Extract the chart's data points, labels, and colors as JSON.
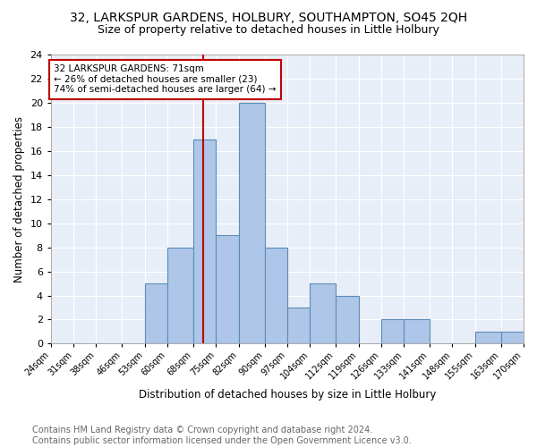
{
  "title1": "32, LARKSPUR GARDENS, HOLBURY, SOUTHAMPTON, SO45 2QH",
  "title2": "Size of property relative to detached houses in Little Holbury",
  "xlabel": "Distribution of detached houses by size in Little Holbury",
  "ylabel": "Number of detached properties",
  "footer": "Contains HM Land Registry data © Crown copyright and database right 2024.\nContains public sector information licensed under the Open Government Licence v3.0.",
  "bin_labels": [
    "24sqm",
    "31sqm",
    "38sqm",
    "46sqm",
    "53sqm",
    "60sqm",
    "68sqm",
    "75sqm",
    "82sqm",
    "90sqm",
    "97sqm",
    "104sqm",
    "112sqm",
    "119sqm",
    "126sqm",
    "133sqm",
    "141sqm",
    "148sqm",
    "155sqm",
    "163sqm",
    "170sqm"
  ],
  "bin_edges": [
    24,
    31,
    38,
    46,
    53,
    60,
    68,
    75,
    82,
    90,
    97,
    104,
    112,
    119,
    126,
    133,
    141,
    148,
    155,
    163,
    170
  ],
  "counts": [
    0,
    0,
    0,
    0,
    5,
    8,
    17,
    9,
    20,
    8,
    3,
    5,
    4,
    0,
    2,
    2,
    0,
    0,
    1,
    1,
    0
  ],
  "bar_color": "#aec6e8",
  "bar_edge_color": "#5b8db8",
  "vline_x": 71,
  "vline_color": "#c00000",
  "annotation_text": "32 LARKSPUR GARDENS: 71sqm\n← 26% of detached houses are smaller (23)\n74% of semi-detached houses are larger (64) →",
  "annotation_box_color": "white",
  "annotation_box_edge": "#c00000",
  "ylim": [
    0,
    24
  ],
  "yticks": [
    0,
    2,
    4,
    6,
    8,
    10,
    12,
    14,
    16,
    18,
    20,
    22,
    24
  ],
  "background_color": "#e8eef8",
  "grid_color": "white",
  "title1_fontsize": 10,
  "title2_fontsize": 9,
  "footer_fontsize": 7,
  "xlabel_fontsize": 8.5,
  "ylabel_fontsize": 8.5
}
